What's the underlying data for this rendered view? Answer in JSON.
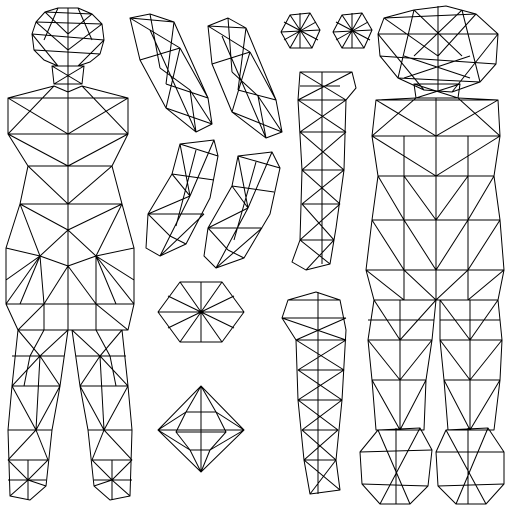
{
  "canvas": {
    "background": "#ffffff",
    "line_color": "#000000"
  },
  "islands": [
    "body-front",
    "body-back",
    "upper-arm-left",
    "upper-arm-right",
    "forearm-left",
    "forearm-right",
    "eye-left",
    "eye-right",
    "lower-leg-front",
    "lower-leg-back",
    "disc-top",
    "disc-bottom"
  ]
}
